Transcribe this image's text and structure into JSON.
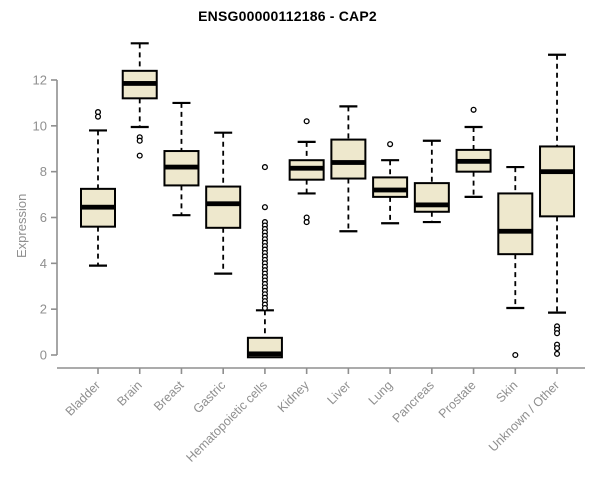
{
  "chart_data": {
    "type": "boxplot",
    "title": "ENSG00000112186 - CAP2",
    "xlabel": "",
    "ylabel": "Expression",
    "yticks": [
      0,
      2,
      4,
      6,
      8,
      10,
      12
    ],
    "ylim": [
      0,
      12
    ],
    "grid": false,
    "legend": "none",
    "colors": {
      "box_fill": "#EEE8CD",
      "box_stroke": "#000000",
      "median": "#000000",
      "axis": "#8f8f8f",
      "tick_text": "#8f8f8f",
      "title_text": "#000000"
    },
    "categories": [
      "Bladder",
      "Brain",
      "Breast",
      "Gastric",
      "Hematopoietic cells",
      "Kidney",
      "Liver",
      "Lung",
      "Pancreas",
      "Prostate",
      "Skin",
      "Unknown / Other"
    ],
    "series": [
      {
        "category": "Bladder",
        "low": 3.9,
        "q1": 5.6,
        "median": 6.45,
        "q3": 7.25,
        "high": 9.8,
        "outliers": [
          10.6,
          10.4
        ]
      },
      {
        "category": "Brain",
        "low": 9.95,
        "q1": 11.2,
        "median": 11.85,
        "q3": 12.4,
        "high": 13.6,
        "outliers": [
          9.5,
          9.35,
          8.7
        ]
      },
      {
        "category": "Breast",
        "low": 6.1,
        "q1": 7.4,
        "median": 8.2,
        "q3": 8.9,
        "high": 11.0,
        "outliers": []
      },
      {
        "category": "Gastric",
        "low": 3.55,
        "q1": 5.55,
        "median": 6.6,
        "q3": 7.35,
        "high": 9.7,
        "outliers": []
      },
      {
        "category": "Hematopoietic cells",
        "low": -0.1,
        "q1": -0.1,
        "median": 0.05,
        "q3": 0.75,
        "high": 1.95,
        "outliers": [
          8.2,
          6.45,
          5.8,
          5.65,
          5.5,
          5.35,
          5.2,
          5.05,
          4.9,
          4.75,
          4.6,
          4.45,
          4.3,
          4.15,
          4.0,
          3.85,
          3.7,
          3.55,
          3.4,
          3.25,
          3.1,
          2.95,
          2.8,
          2.65,
          2.5,
          2.35,
          2.2,
          2.05
        ]
      },
      {
        "category": "Kidney",
        "low": 7.05,
        "q1": 7.65,
        "median": 8.15,
        "q3": 8.5,
        "high": 9.3,
        "outliers": [
          10.2,
          6.0,
          5.8
        ]
      },
      {
        "category": "Liver",
        "low": 5.4,
        "q1": 7.7,
        "median": 8.4,
        "q3": 9.4,
        "high": 10.85,
        "outliers": []
      },
      {
        "category": "Lung",
        "low": 5.75,
        "q1": 6.9,
        "median": 7.2,
        "q3": 7.75,
        "high": 8.5,
        "outliers": [
          9.2
        ]
      },
      {
        "category": "Pancreas",
        "low": 5.8,
        "q1": 6.25,
        "median": 6.55,
        "q3": 7.5,
        "high": 9.35,
        "outliers": []
      },
      {
        "category": "Prostate",
        "low": 6.9,
        "q1": 8.0,
        "median": 8.45,
        "q3": 8.95,
        "high": 9.95,
        "outliers": [
          10.7
        ]
      },
      {
        "category": "Skin",
        "low": 2.05,
        "q1": 4.4,
        "median": 5.4,
        "q3": 7.05,
        "high": 8.2,
        "outliers": [
          0.0
        ]
      },
      {
        "category": "Unknown / Other",
        "low": 1.85,
        "q1": 6.05,
        "median": 8.0,
        "q3": 9.1,
        "high": 13.1,
        "outliers": [
          1.25,
          1.1,
          0.95,
          0.45,
          0.3,
          0.05
        ]
      }
    ]
  }
}
